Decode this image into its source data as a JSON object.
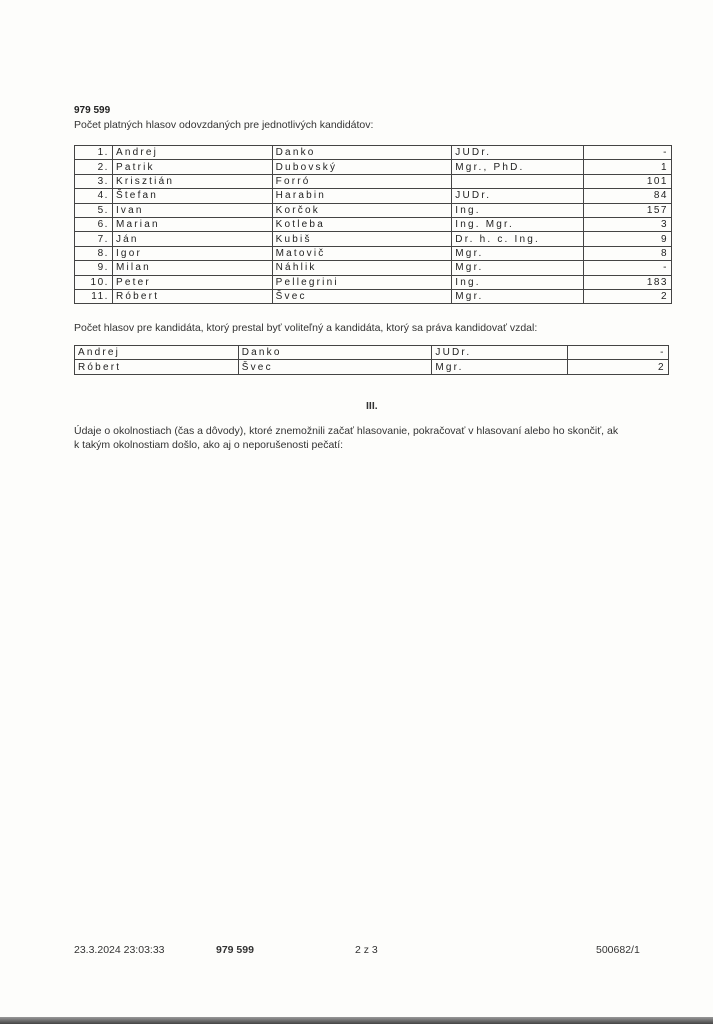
{
  "header": {
    "code": "979 599",
    "intro": "Počet platných hlasov odovzdaných pre jednotlivých kandidátov:"
  },
  "candidates": [
    {
      "no": "1.",
      "first": "Andrej",
      "last": "Danko",
      "title": "JUDr.",
      "votes": "-"
    },
    {
      "no": "2.",
      "first": "Patrik",
      "last": "Dubovský",
      "title": "Mgr., PhD.",
      "votes": "1"
    },
    {
      "no": "3.",
      "first": "Krisztián",
      "last": "Forró",
      "title": "",
      "votes": "101"
    },
    {
      "no": "4.",
      "first": "Štefan",
      "last": "Harabin",
      "title": "JUDr.",
      "votes": "84"
    },
    {
      "no": "5.",
      "first": "Ivan",
      "last": "Korčok",
      "title": "Ing.",
      "votes": "157"
    },
    {
      "no": "6.",
      "first": "Marian",
      "last": "Kotleba",
      "title": "Ing. Mgr.",
      "votes": "3"
    },
    {
      "no": "7.",
      "first": "Ján",
      "last": "Kubiš",
      "title": "Dr. h. c. Ing.",
      "votes": "9"
    },
    {
      "no": "8.",
      "first": "Igor",
      "last": "Matovič",
      "title": "Mgr.",
      "votes": "8"
    },
    {
      "no": "9.",
      "first": "Milan",
      "last": "Náhlik",
      "title": "Mgr.",
      "votes": "-"
    },
    {
      "no": "10.",
      "first": "Peter",
      "last": "Pellegrini",
      "title": "Ing.",
      "votes": "183"
    },
    {
      "no": "11.",
      "first": "Róbert",
      "last": "Švec",
      "title": "Mgr.",
      "votes": "2"
    }
  ],
  "withdrawn_intro": "Počet hlasov pre kandidáta, ktorý prestal byť voliteľný a kandidáta, ktorý sa práva kandidovať vzdal:",
  "withdrawn": [
    {
      "first": "Andrej",
      "last": "Danko",
      "title": "JUDr.",
      "votes": "-"
    },
    {
      "first": "Róbert",
      "last": "Švec",
      "title": "Mgr.",
      "votes": "2"
    }
  ],
  "section": {
    "heading": "III.",
    "text_line1": "Údaje o okolnostiach (čas a dôvody), ktoré znemožnili začať hlasovanie, pokračovať v hlasovaní alebo ho skončiť, ak",
    "text_line2": "k takým okolnostiam došlo, ako aj o neporušenosti pečatí:"
  },
  "footer": {
    "timestamp": "23.3.2024 23:03:33",
    "code": "979 599",
    "page": "2 z 3",
    "ref": "500682/1"
  }
}
